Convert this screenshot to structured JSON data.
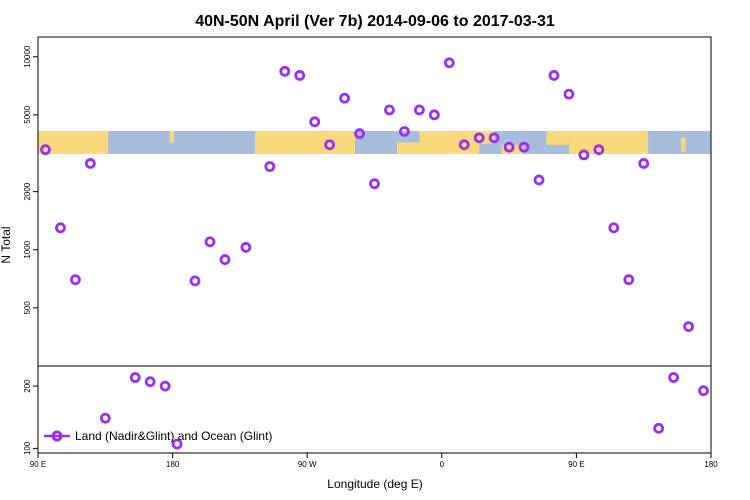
{
  "chart_data": {
    "type": "scatter",
    "title": "40N-50N April (Ver 7b)   2014-09-06 to 2017-03-31",
    "xlabel": "Longitude (deg E)",
    "ylabel": "N Total",
    "x_ticks": [
      {
        "value": 90,
        "label": "90 E"
      },
      {
        "value": 180,
        "label": "180"
      },
      {
        "value": 270,
        "label": "90 W"
      },
      {
        "value": 360,
        "label": "0"
      },
      {
        "value": 450,
        "label": "90 E"
      },
      {
        "value": 540,
        "label": "180"
      }
    ],
    "xlim": [
      90,
      540
    ],
    "y_scale": "log",
    "upper_panel": {
      "ylim": [
        250,
        11500
      ],
      "ticks": [
        500,
        1000,
        2000,
        5000,
        10000
      ]
    },
    "lower_panel": {
      "ylim": [
        95,
        250
      ],
      "ticks": [
        100,
        200
      ]
    },
    "map_strip": {
      "latitude_band": "40N-50N",
      "land_color": "#F9D97C",
      "ocean_color": "#A6BDDB"
    },
    "series": [
      {
        "name": "Land (Nadir&Glint) and Ocean (Glint)",
        "color": "#9B30F0",
        "x": [
          95,
          105,
          115,
          125,
          135,
          155,
          165,
          175,
          183,
          195,
          205,
          215,
          229,
          245,
          255,
          265,
          275,
          285,
          295,
          305,
          315,
          325,
          335,
          345,
          355,
          365,
          375,
          385,
          395,
          405,
          415,
          425,
          435,
          445,
          455,
          465,
          475,
          485,
          495,
          505,
          515,
          525,
          535
        ],
        "y": [
          3300,
          1300,
          700,
          2800,
          140,
          220,
          210,
          200,
          105,
          690,
          1100,
          890,
          1030,
          2700,
          8400,
          8000,
          4600,
          3500,
          6100,
          4000,
          2200,
          5300,
          4100,
          5300,
          5000,
          9300,
          3500,
          3800,
          3800,
          3400,
          3400,
          2300,
          8000,
          6400,
          3100,
          3300,
          1300,
          700,
          2800,
          125,
          220,
          400,
          190
        ]
      }
    ],
    "legend": {
      "position": "bottom-left"
    },
    "grid": false
  }
}
